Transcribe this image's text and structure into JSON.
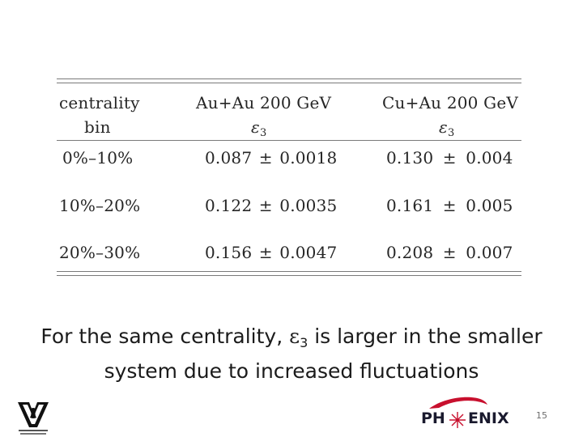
{
  "table": {
    "header": {
      "col1_line1": "centrality",
      "col1_line2": "bin",
      "col2_line1": "Au+Au 200 GeV",
      "col3_line1": "Cu+Au 200 GeV",
      "epsilon_symbol": "ε",
      "epsilon_sub": "3"
    },
    "rows": [
      {
        "bin": "0%–10%",
        "auau_value": "0.087",
        "auau_error": "0.0018",
        "cuau_value": "0.130",
        "cuau_error": "0.004"
      },
      {
        "bin": "10%–20%",
        "auau_value": "0.122",
        "auau_error": "0.0035",
        "cuau_value": "0.161",
        "cuau_error": "0.005"
      },
      {
        "bin": "20%–30%",
        "auau_value": "0.156",
        "auau_error": "0.0047",
        "cuau_value": "0.208",
        "cuau_error": "0.007"
      }
    ],
    "pm_symbol": "±"
  },
  "caption": {
    "part1": "For the same centrality, ",
    "epsilon_symbol": "ε",
    "epsilon_sub": "3",
    "part2": " is larger in the smaller",
    "line2": "system due to increased fluctuations"
  },
  "footer": {
    "logo_left": "vanderbilt-university-logo",
    "logo_right_text": "PH",
    "logo_right_text2": "ENIX",
    "page_number": "15",
    "brand_red": "#c8102e",
    "brand_dark": "#1a1a2e"
  }
}
